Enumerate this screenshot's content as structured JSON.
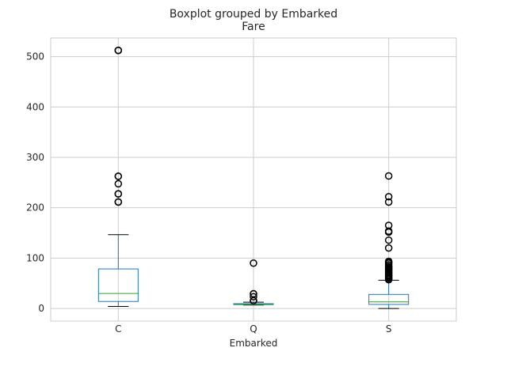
{
  "chart_data": {
    "type": "boxplot",
    "title": "Boxplot grouped by Embarked",
    "subtitle": "Fare",
    "xlabel": "Embarked",
    "ylabel": "",
    "ylim": [
      -25,
      537
    ],
    "yticks": [
      0,
      100,
      200,
      300,
      400,
      500
    ],
    "grid": true,
    "colors": {
      "box": "#1f77b4",
      "median": "#2ca02c",
      "whisker": "#1f77b4",
      "cap": "#000000",
      "flier": "#000000",
      "grid": "#cccccc",
      "axes": "#cccccc"
    },
    "categories": [
      "C",
      "Q",
      "S"
    ],
    "boxes": [
      {
        "name": "C",
        "whislo": 4.0,
        "q1": 13.9,
        "med": 29.7,
        "q3": 78.5,
        "whishi": 146.5,
        "fliers": [
          512.3,
          512.3,
          512.3,
          262.4,
          262.4,
          247.5,
          227.5,
          227.5,
          211.3,
          211.5
        ]
      },
      {
        "name": "Q",
        "whislo": 6.75,
        "q1": 7.75,
        "med": 7.75,
        "q3": 9.5,
        "whishi": 12.4,
        "fliers": [
          15.5,
          15.5,
          23.25,
          29.1,
          29.1,
          90.0
        ]
      },
      {
        "name": "S",
        "whislo": 0.0,
        "q1": 8.05,
        "med": 13.0,
        "q3": 27.9,
        "whishi": 56.0,
        "fliers": [
          263.0,
          221.8,
          211.3,
          164.9,
          153.5,
          151.6,
          135.6,
          120.0,
          93.5,
          91.1,
          90.0,
          86.5,
          83.5,
          82.2,
          79.7,
          78.9,
          77.3,
          76.3,
          73.5,
          71.0,
          69.6,
          66.6,
          65.0,
          63.4,
          61.2,
          59.4,
          57.0
        ]
      }
    ]
  }
}
